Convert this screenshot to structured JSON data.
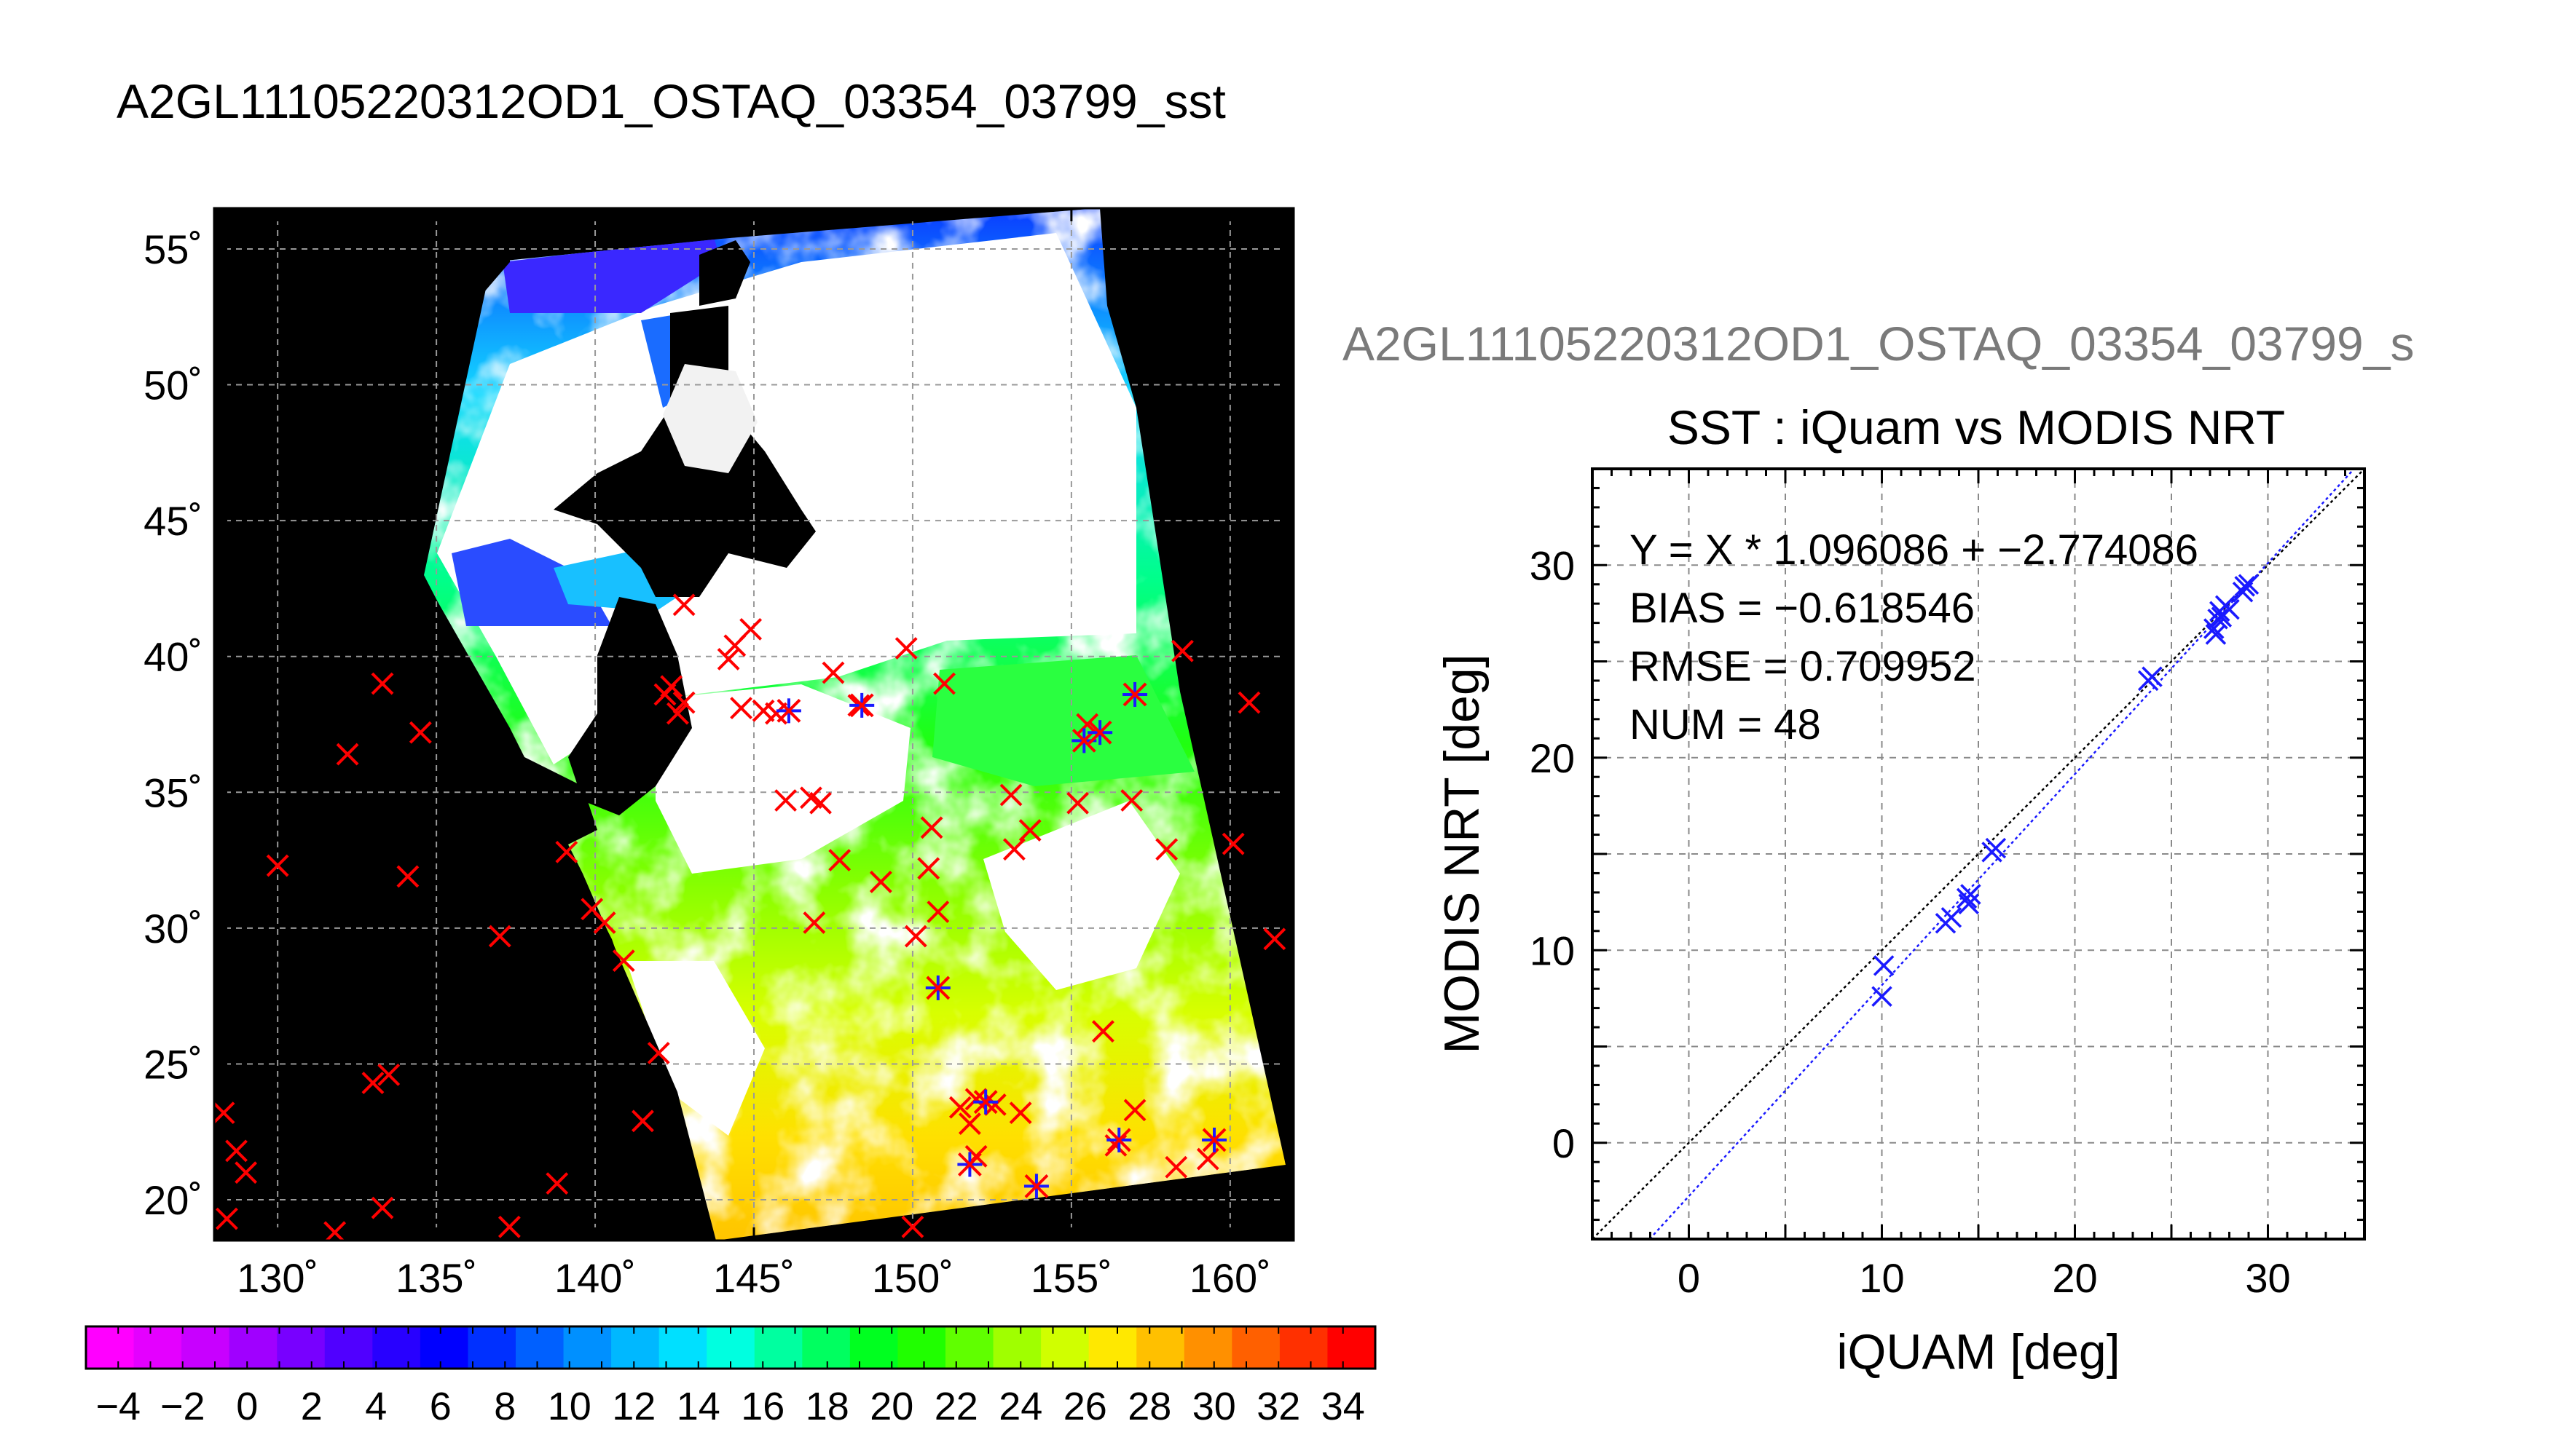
{
  "figure_title": "A2GL11105220312OD1_OSTAQ_03354_03799_sst",
  "chart_data": [
    {
      "type": "heatmap",
      "kind": "sst-map",
      "lon_range": [
        128,
        162
      ],
      "lat_range": [
        18.5,
        56.5
      ],
      "lon_ticks": [
        130,
        135,
        140,
        145,
        150,
        155,
        160
      ],
      "lat_ticks": [
        20,
        25,
        30,
        35,
        40,
        45,
        50,
        55
      ],
      "lon_tick_labels": [
        "130˚",
        "135˚",
        "140˚",
        "145˚",
        "150˚",
        "155˚",
        "160˚"
      ],
      "lat_tick_labels": [
        "20˚",
        "25˚",
        "30˚",
        "35˚",
        "40˚",
        "45˚",
        "50˚",
        "55˚"
      ],
      "grid": true,
      "colorbar": {
        "range": [
          -5,
          35
        ],
        "tick_labels": [
          "−4",
          "−2",
          "0",
          "2",
          "4",
          "6",
          "8",
          "10",
          "12",
          "14",
          "16",
          "18",
          "20",
          "22",
          "24",
          "26",
          "28",
          "30",
          "32",
          "34"
        ],
        "tick_values": [
          -4,
          -2,
          0,
          2,
          4,
          6,
          8,
          10,
          12,
          14,
          16,
          18,
          20,
          22,
          24,
          26,
          28,
          30,
          32,
          34
        ],
        "colors": [
          "#ff00ff",
          "#e400ff",
          "#c800ff",
          "#a000ff",
          "#7800ff",
          "#5000ff",
          "#2800ff",
          "#0000ff",
          "#0030ff",
          "#0060ff",
          "#0090ff",
          "#00b8ff",
          "#00e0ff",
          "#00ffe0",
          "#00ffa0",
          "#00ff60",
          "#00ff20",
          "#20ff00",
          "#60ff00",
          "#a0ff00",
          "#d0ff00",
          "#ffe800",
          "#ffc000",
          "#ff9000",
          "#ff6000",
          "#ff3000",
          "#ff0000"
        ]
      },
      "markers_red_x": [
        [
          128.3,
          23.2
        ],
        [
          128.7,
          21.8
        ],
        [
          129.0,
          21.0
        ],
        [
          128.4,
          19.3
        ],
        [
          130.0,
          32.3
        ],
        [
          132.2,
          36.4
        ],
        [
          133.3,
          39.0
        ],
        [
          134.5,
          37.2
        ],
        [
          134.1,
          31.9
        ],
        [
          133.0,
          24.3
        ],
        [
          133.5,
          24.6
        ],
        [
          133.3,
          19.7
        ],
        [
          131.8,
          18.8
        ],
        [
          137.0,
          29.7
        ],
        [
          137.3,
          19.0
        ],
        [
          138.8,
          20.6
        ],
        [
          139.1,
          32.8
        ],
        [
          139.9,
          30.7
        ],
        [
          140.3,
          30.2
        ],
        [
          140.9,
          28.8
        ],
        [
          141.5,
          22.9
        ],
        [
          142.0,
          25.4
        ],
        [
          142.6,
          37.9
        ],
        [
          142.2,
          38.6
        ],
        [
          142.4,
          38.9
        ],
        [
          142.8,
          38.3
        ],
        [
          142.8,
          41.9
        ],
        [
          144.2,
          39.9
        ],
        [
          144.4,
          40.4
        ],
        [
          144.9,
          41.0
        ],
        [
          145.3,
          38.0
        ],
        [
          144.6,
          38.1
        ],
        [
          145.7,
          37.9
        ],
        [
          146.0,
          34.7
        ],
        [
          146.8,
          34.8
        ],
        [
          147.1,
          34.6
        ],
        [
          147.5,
          39.4
        ],
        [
          147.7,
          32.5
        ],
        [
          146.9,
          30.2
        ],
        [
          148.3,
          38.2
        ],
        [
          149.0,
          31.7
        ],
        [
          149.8,
          40.3
        ],
        [
          150.1,
          29.7
        ],
        [
          150.8,
          30.6
        ],
        [
          150.6,
          33.7
        ],
        [
          150.5,
          32.2
        ],
        [
          151.0,
          39.0
        ],
        [
          153.1,
          34.9
        ],
        [
          153.2,
          32.9
        ],
        [
          153.7,
          33.6
        ],
        [
          153.4,
          23.2
        ],
        [
          155.2,
          34.6
        ],
        [
          155.5,
          37.5
        ],
        [
          156.0,
          26.2
        ],
        [
          156.4,
          22.0
        ],
        [
          156.9,
          34.7
        ],
        [
          157.0,
          23.3
        ],
        [
          158.0,
          32.9
        ],
        [
          158.3,
          21.2
        ],
        [
          158.5,
          40.2
        ],
        [
          159.3,
          21.5
        ],
        [
          160.1,
          33.1
        ],
        [
          160.6,
          38.3
        ],
        [
          161.4,
          29.6
        ],
        [
          150.0,
          19.0
        ],
        [
          152.0,
          23.7
        ],
        [
          152.6,
          23.5
        ],
        [
          151.8,
          22.8
        ],
        [
          152.0,
          21.6
        ],
        [
          151.5,
          23.4
        ]
      ],
      "markers_blue_star": [
        [
          146.1,
          38.0
        ],
        [
          148.4,
          38.2
        ],
        [
          150.8,
          27.8
        ],
        [
          151.8,
          21.3
        ],
        [
          152.3,
          23.6
        ],
        [
          153.9,
          20.5
        ],
        [
          155.4,
          36.9
        ],
        [
          155.9,
          37.2
        ],
        [
          156.5,
          22.2
        ],
        [
          157.0,
          38.6
        ],
        [
          159.5,
          22.2
        ]
      ]
    },
    {
      "type": "scatter",
      "title": "SST : iQuam vs MODIS NRT",
      "subtitle": "A2GL11105220312OD1_OSTAQ_03354_03799_s",
      "xlabel": "iQUAM [deg]",
      "ylabel": "MODIS NRT [deg]",
      "xlim": [
        -5,
        35
      ],
      "ylim": [
        -5,
        35
      ],
      "x_ticks": [
        0,
        10,
        20,
        30
      ],
      "y_ticks": [
        0,
        10,
        20,
        30
      ],
      "x_tick_labels": [
        "0",
        "10",
        "20",
        "30"
      ],
      "y_tick_labels": [
        "0",
        "10",
        "20",
        "30"
      ],
      "grid": true,
      "stats": [
        "Y = X * 1.096086 + −2.774086",
        "BIAS = −0.618546",
        "RMSE = 0.709952",
        "NUM = 48"
      ],
      "fit": {
        "slope": 1.096086,
        "intercept": -2.774086
      },
      "points": {
        "x": [
          10.0,
          10.1,
          13.3,
          13.6,
          14.4,
          14.6,
          14.5,
          15.7,
          15.9,
          23.8,
          24.0,
          27.2,
          27.4,
          27.5,
          27.3,
          27.8,
          28.0,
          27.6,
          28.7,
          29.0,
          28.8
        ],
        "y": [
          7.6,
          9.2,
          11.4,
          11.7,
          12.7,
          12.9,
          12.4,
          15.1,
          15.3,
          24.0,
          24.2,
          26.7,
          27.2,
          27.6,
          26.4,
          27.9,
          27.7,
          27.3,
          28.6,
          29.0,
          28.9
        ]
      }
    }
  ]
}
